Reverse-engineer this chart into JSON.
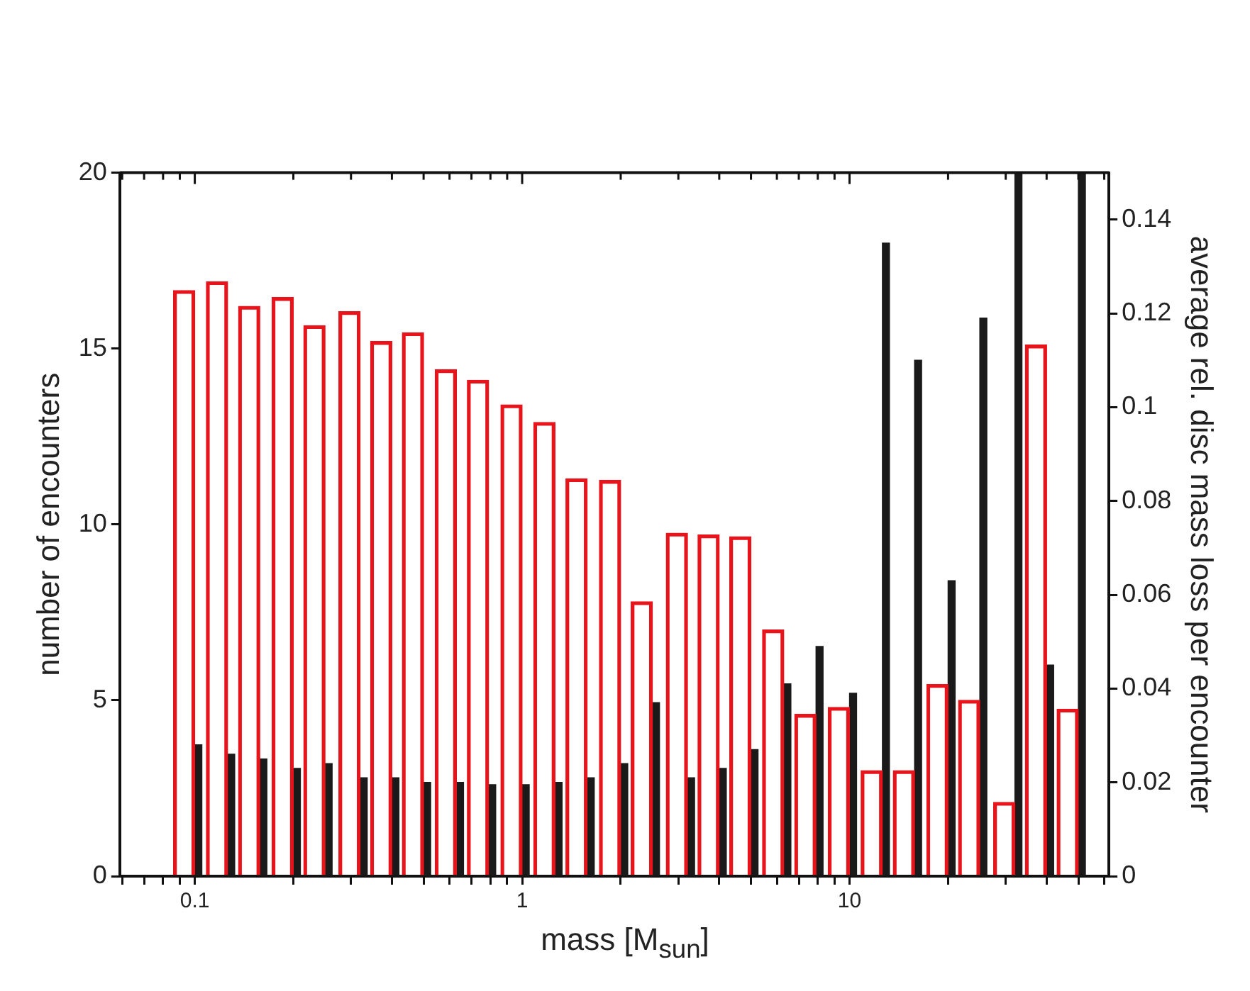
{
  "chart_data": {
    "type": "bar",
    "xlabel": "mass [M$_{sun}$]",
    "ylabel": "number of encounters",
    "y2label": "average rel. disc mass loss per encounter",
    "log": "x",
    "grid": false,
    "x": [
      0.1,
      0.126,
      0.158,
      0.2,
      0.25,
      0.32,
      0.4,
      0.5,
      0.63,
      0.79,
      1,
      1.26,
      1.58,
      2,
      2.5,
      3.2,
      4,
      5,
      6.3,
      7.9,
      10,
      12.6,
      15.8,
      20,
      25,
      32,
      40,
      50
    ],
    "xlim": [
      0.059,
      62
    ],
    "xticks": [
      {
        "value": 0.06,
        "label": null
      },
      {
        "value": 0.07,
        "label": null
      },
      {
        "value": 0.08,
        "label": null
      },
      {
        "value": 0.09,
        "label": null
      },
      0.1,
      {
        "value": 0.2,
        "label": null
      },
      {
        "value": 0.3,
        "label": null
      },
      {
        "value": 0.4,
        "label": null
      },
      {
        "value": 0.5,
        "label": null
      },
      {
        "value": 0.6,
        "label": null
      },
      {
        "value": 0.7,
        "label": null
      },
      {
        "value": 0.8,
        "label": null
      },
      {
        "value": 0.9,
        "label": null
      },
      1,
      {
        "value": 2,
        "label": null
      },
      {
        "value": 3,
        "label": null
      },
      {
        "value": 4,
        "label": null
      },
      {
        "value": 5,
        "label": null
      },
      {
        "value": 6,
        "label": null
      },
      {
        "value": 7,
        "label": null
      },
      {
        "value": 8,
        "label": null
      },
      {
        "value": 9,
        "label": null
      },
      10,
      {
        "value": 20,
        "label": null
      },
      {
        "value": 30,
        "label": null
      },
      {
        "value": 40,
        "label": null
      },
      {
        "value": 50,
        "label": null
      },
      {
        "value": 60,
        "label": null
      }
    ],
    "ylim": [
      0,
      20
    ],
    "yticks": [
      0,
      5,
      10,
      15,
      20
    ],
    "y2lim": [
      0,
      0.15
    ],
    "y2ticks": [
      0,
      0.02,
      0.04,
      0.06,
      0.08,
      0.1,
      0.12,
      0.14
    ],
    "series": [
      {
        "color": "#e8141c",
        "values": [
          16.65,
          16.9,
          16.2,
          16.45,
          15.65,
          16.05,
          15.2,
          15.45,
          14.4,
          14.1,
          13.4,
          12.9,
          11.3,
          11.25,
          7.8,
          9.75,
          9.7,
          9.65,
          7.0,
          4.6,
          4.8,
          3.0,
          3.0,
          5.45,
          5.0,
          2.1,
          15.1,
          4.75
        ]
      },
      {
        "color": "#1a1a1a",
        "axis": "y2",
        "values": [
          0.028,
          0.026,
          0.025,
          0.023,
          0.024,
          0.021,
          0.021,
          0.02,
          0.02,
          0.0195,
          0.0195,
          0.02,
          0.021,
          0.024,
          0.037,
          0.021,
          0.023,
          0.027,
          0.041,
          0.049,
          0.039,
          0.135,
          0.11,
          0.063,
          0.119,
          0.15,
          0.045,
          0.15
        ]
      }
    ]
  }
}
